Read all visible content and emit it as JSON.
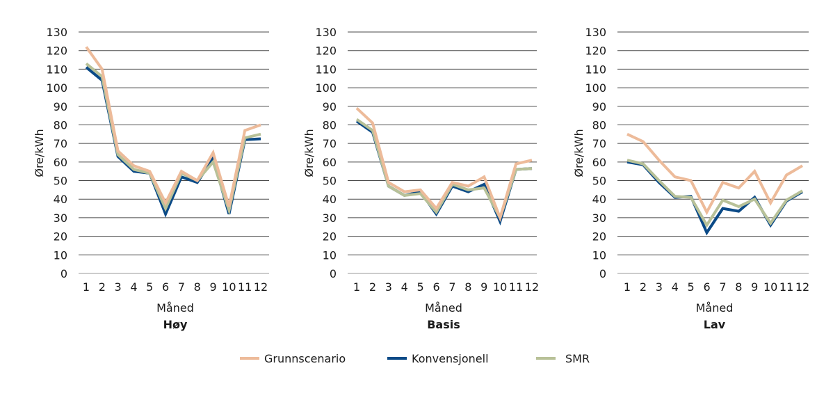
{
  "chart_data": [
    {
      "type": "line",
      "title": "Høy",
      "xlabel": "Måned",
      "ylabel": "Øre/kWh",
      "ylim": [
        0,
        130
      ],
      "yticks": [
        0,
        10,
        20,
        30,
        40,
        50,
        60,
        70,
        80,
        90,
        100,
        110,
        120,
        130
      ],
      "categories": [
        "1",
        "2",
        "3",
        "4",
        "5",
        "6",
        "7",
        "8",
        "9",
        "10",
        "11",
        "12"
      ],
      "grid": true,
      "series": [
        {
          "name": "Grunnscenario",
          "values": [
            122,
            110,
            66,
            58,
            55,
            38,
            55,
            50,
            65,
            36,
            77,
            80
          ]
        },
        {
          "name": "Konvensjonell",
          "values": [
            111,
            104,
            63,
            55,
            54,
            32,
            52,
            49,
            62,
            32,
            72,
            72.5
          ]
        },
        {
          "name": "SMR",
          "values": [
            113,
            106,
            64,
            56,
            54,
            35,
            54,
            50,
            60,
            34,
            73,
            75
          ]
        }
      ]
    },
    {
      "type": "line",
      "title": "Basis",
      "xlabel": "Måned",
      "ylabel": "Øre/kWh",
      "ylim": [
        0,
        130
      ],
      "yticks": [
        0,
        10,
        20,
        30,
        40,
        50,
        60,
        70,
        80,
        90,
        100,
        110,
        120,
        130
      ],
      "categories": [
        "1",
        "2",
        "3",
        "4",
        "5",
        "6",
        "7",
        "8",
        "9",
        "10",
        "11",
        "12"
      ],
      "grid": true,
      "series": [
        {
          "name": "Grunnscenario",
          "values": [
            89,
            81,
            49,
            44,
            45,
            35,
            49,
            47,
            52,
            30,
            59,
            61
          ]
        },
        {
          "name": "Konvensjonell",
          "values": [
            82,
            76,
            47,
            42,
            44,
            32,
            47,
            44,
            48,
            28,
            56,
            56.5
          ]
        },
        {
          "name": "SMR",
          "values": [
            83,
            77,
            47,
            42,
            43,
            33,
            48,
            45,
            46,
            30,
            56,
            56.5
          ]
        }
      ]
    },
    {
      "type": "line",
      "title": "Lav",
      "xlabel": "Måned",
      "ylabel": "Øre/kWh",
      "ylim": [
        0,
        130
      ],
      "yticks": [
        0,
        10,
        20,
        30,
        40,
        50,
        60,
        70,
        80,
        90,
        100,
        110,
        120,
        130
      ],
      "categories": [
        "1",
        "2",
        "3",
        "4",
        "5",
        "6",
        "7",
        "8",
        "9",
        "10",
        "11",
        "12"
      ],
      "grid": true,
      "series": [
        {
          "name": "Grunnscenario",
          "values": [
            75,
            71,
            61,
            52,
            50,
            33,
            49,
            46,
            55,
            38,
            53,
            58
          ]
        },
        {
          "name": "Konvensjonell",
          "values": [
            60,
            58.5,
            49,
            41,
            41.5,
            22,
            35,
            33.5,
            41,
            26,
            39,
            44
          ]
        },
        {
          "name": "SMR",
          "values": [
            61,
            59,
            50,
            41.5,
            41,
            26,
            39.5,
            36,
            40,
            27,
            39.5,
            44.5
          ]
        }
      ]
    }
  ],
  "legend": {
    "placement": "bottom",
    "items": [
      {
        "label": "Grunnscenario",
        "color": "#EDBB9A"
      },
      {
        "label": "Konvensjonell",
        "color": "#0B4A87"
      },
      {
        "label": "SMR",
        "color": "#B8C198"
      }
    ]
  }
}
